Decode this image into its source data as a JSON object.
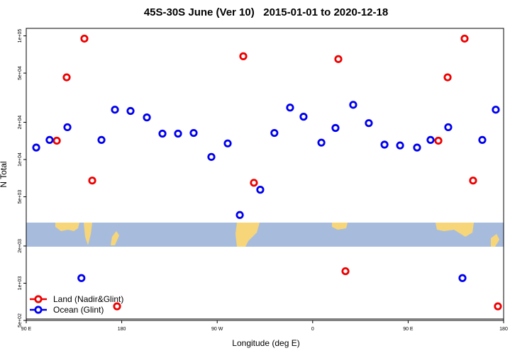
{
  "chart_data": {
    "type": "scatter",
    "title": "45S-30S June (Ver 10)   2015-01-01 to 2020-12-18",
    "x_label": "Longitude (deg E)",
    "y_label": "N Total",
    "yscale": "log",
    "xlim": [
      90,
      540
    ],
    "ylim": [
      500,
      115000
    ],
    "xticks": [
      {
        "value": 90,
        "label": "90 E"
      },
      180,
      {
        "value": 270,
        "label": "90 W"
      },
      {
        "value": 360,
        "label": "0"
      },
      {
        "value": 450,
        "label": "90 E"
      },
      {
        "value": 540,
        "label": "180"
      }
    ],
    "yticks": [
      {
        "value": 100000,
        "label": "1e+05"
      },
      {
        "value": 50000,
        "label": "5e+04"
      },
      {
        "value": 20000,
        "label": "2e+04"
      },
      {
        "value": 10000,
        "label": "1e+04"
      },
      {
        "value": 5000,
        "label": "5e+03"
      },
      {
        "value": 2000,
        "label": "2e+03"
      },
      {
        "value": 1000,
        "label": "1e+03"
      },
      {
        "value": 500,
        "label": "5e+02"
      }
    ],
    "legend": "lower left",
    "series": [
      {
        "name": "Land (Nadir&Glint)",
        "color": "#ee0000",
        "x": [
          118.8,
          128.1,
          144.8,
          152.2,
          175.6,
          294.6,
          304.6,
          384.2,
          390.9,
          478.5,
          487.2,
          503.2,
          511.2,
          534.6
        ],
        "values": [
          14200,
          46200,
          95000,
          6760,
          650,
          68400,
          6490,
          64900,
          1250,
          14200,
          46200,
          95000,
          6760,
          650
        ]
      },
      {
        "name": "Ocean (Glint)",
        "color": "#0000ee",
        "x": [
          99.4,
          112,
          128.8,
          142,
          160.9,
          173.6,
          188.3,
          203.7,
          218.4,
          233.1,
          247.8,
          264.5,
          279.9,
          291.3,
          310.6,
          323.9,
          338.7,
          351.4,
          368.2,
          381.5,
          398.2,
          412.9,
          427.7,
          442.4,
          458.4,
          471.1,
          487.8,
          501.2,
          519.9,
          532.6
        ],
        "values": [
          12500,
          14400,
          18250,
          1100,
          14400,
          25300,
          24700,
          21900,
          16200,
          16200,
          16400,
          10500,
          13500,
          3560,
          5700,
          16400,
          26300,
          22200,
          13700,
          18000,
          27700,
          19700,
          13200,
          13000,
          12500,
          14400,
          18250,
          1100,
          14400,
          25300
        ]
      }
    ]
  }
}
